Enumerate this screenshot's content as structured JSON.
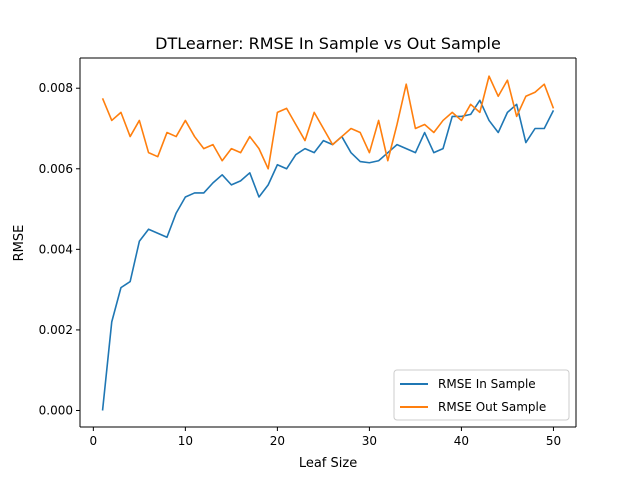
{
  "chart_data": {
    "type": "line",
    "title": "DTLearner: RMSE In Sample vs Out Sample",
    "xlabel": "Leaf Size",
    "ylabel": "RMSE",
    "xlim": [
      -1.45,
      52.45
    ],
    "ylim": [
      -0.00041,
      0.00875
    ],
    "xticks": [
      0,
      10,
      20,
      30,
      40,
      50
    ],
    "xtick_labels": [
      "0",
      "10",
      "20",
      "30",
      "40",
      "50"
    ],
    "yticks": [
      0,
      0.002,
      0.004,
      0.006,
      0.008
    ],
    "ytick_labels": [
      "0.000",
      "0.002",
      "0.004",
      "0.006",
      "0.008"
    ],
    "grid": false,
    "legend_position": "lower-right",
    "x": [
      1,
      2,
      3,
      4,
      5,
      6,
      7,
      8,
      9,
      10,
      11,
      12,
      13,
      14,
      15,
      16,
      17,
      18,
      19,
      20,
      21,
      22,
      23,
      24,
      25,
      26,
      27,
      28,
      29,
      30,
      31,
      32,
      33,
      34,
      35,
      36,
      37,
      38,
      39,
      40,
      41,
      42,
      43,
      44,
      45,
      46,
      47,
      48,
      49,
      50
    ],
    "series": [
      {
        "name": "RMSE In Sample",
        "color": "#1f77b4",
        "values": [
          0.0,
          0.0022,
          0.00305,
          0.0032,
          0.0042,
          0.0045,
          0.0044,
          0.0043,
          0.0049,
          0.0053,
          0.0054,
          0.0054,
          0.00565,
          0.00585,
          0.0056,
          0.0057,
          0.0059,
          0.0053,
          0.0056,
          0.0061,
          0.006,
          0.00635,
          0.0065,
          0.0064,
          0.0067,
          0.0066,
          0.0068,
          0.0064,
          0.00618,
          0.00615,
          0.0062,
          0.0064,
          0.0066,
          0.0065,
          0.0064,
          0.0069,
          0.0064,
          0.0065,
          0.0073,
          0.0073,
          0.00735,
          0.0077,
          0.0072,
          0.0069,
          0.0074,
          0.0076,
          0.00665,
          0.007,
          0.007,
          0.00745
        ]
      },
      {
        "name": "RMSE Out Sample",
        "color": "#ff7f0e",
        "values": [
          0.00775,
          0.0072,
          0.0074,
          0.0068,
          0.0072,
          0.0064,
          0.0063,
          0.0069,
          0.0068,
          0.0072,
          0.0068,
          0.0065,
          0.0066,
          0.0062,
          0.0065,
          0.0064,
          0.0068,
          0.0065,
          0.006,
          0.0074,
          0.0075,
          0.0071,
          0.0067,
          0.0074,
          0.007,
          0.0066,
          0.0068,
          0.007,
          0.0069,
          0.0064,
          0.0072,
          0.0062,
          0.0071,
          0.0081,
          0.007,
          0.0071,
          0.0069,
          0.0072,
          0.0074,
          0.0072,
          0.0076,
          0.0074,
          0.0083,
          0.0078,
          0.0082,
          0.0073,
          0.0078,
          0.0079,
          0.0081,
          0.0075
        ]
      }
    ]
  }
}
